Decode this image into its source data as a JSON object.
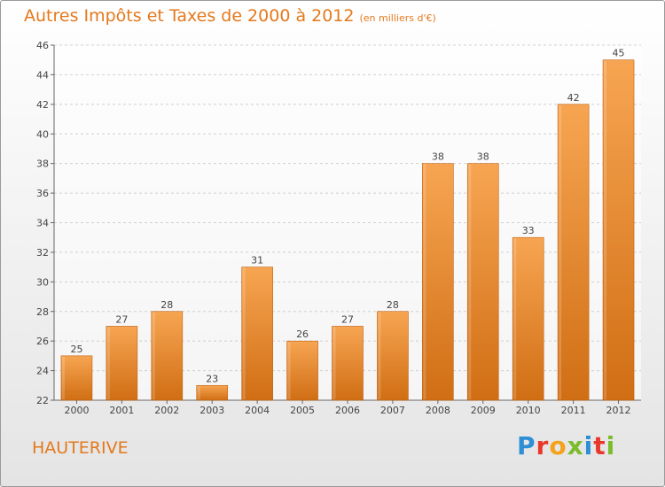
{
  "header": {
    "title": "Autres Impôts et Taxes de 2000 à 2012",
    "subtitle": "(en milliers d'€)"
  },
  "footer": {
    "city": "HAUTERIVE",
    "logo_text": "Proxiti"
  },
  "colors": {
    "accent": "#e4791c",
    "bar_top": "#f7a552",
    "bar_bottom": "#d06e14",
    "bar_stroke": "#c06010"
  },
  "chart_data": {
    "type": "bar",
    "title": "Autres Impôts et Taxes de 2000 à 2012",
    "subtitle": "(en milliers d'€)",
    "xlabel": "",
    "ylabel": "",
    "categories": [
      "2000",
      "2001",
      "2002",
      "2003",
      "2004",
      "2005",
      "2006",
      "2007",
      "2008",
      "2009",
      "2010",
      "2011",
      "2012"
    ],
    "values": [
      25,
      27,
      28,
      23,
      31,
      26,
      27,
      28,
      38,
      38,
      33,
      42,
      45
    ],
    "ylim": [
      22,
      46
    ],
    "yticks": [
      22,
      24,
      26,
      28,
      30,
      32,
      34,
      36,
      38,
      40,
      42,
      44,
      46
    ],
    "grid": true,
    "legend": "none"
  }
}
